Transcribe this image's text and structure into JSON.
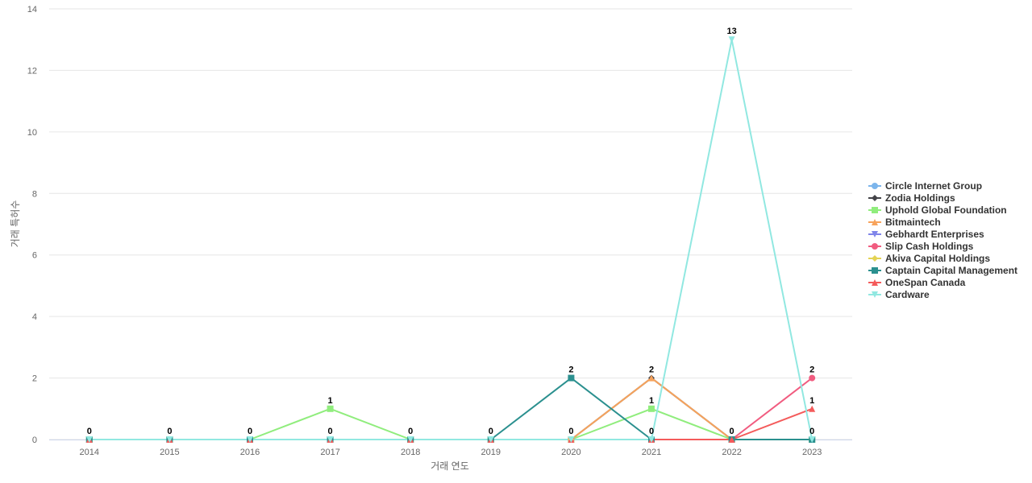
{
  "chart_data": {
    "type": "line",
    "xlabel": "거래 연도",
    "ylabel": "거래 특허수",
    "ylim": [
      0,
      14
    ],
    "yticks": [
      0,
      2,
      4,
      6,
      8,
      10,
      12,
      14
    ],
    "grid": true,
    "legend_position": "right",
    "categories": [
      "2014",
      "2015",
      "2016",
      "2017",
      "2018",
      "2019",
      "2020",
      "2021",
      "2022",
      "2023"
    ],
    "series": [
      {
        "name": "Circle Internet Group",
        "color": "#7cb5ec",
        "marker": "circle",
        "values": [
          0,
          0,
          0,
          0,
          0,
          0,
          0,
          0,
          0,
          0
        ]
      },
      {
        "name": "Zodia Holdings",
        "color": "#434348",
        "marker": "diamond",
        "values": [
          0,
          0,
          0,
          0,
          0,
          0,
          0,
          2,
          0,
          0
        ]
      },
      {
        "name": "Uphold Global Foundation",
        "color": "#90ed7d",
        "marker": "square",
        "values": [
          0,
          0,
          0,
          1,
          0,
          0,
          0,
          1,
          0,
          0
        ]
      },
      {
        "name": "Bitmaintech",
        "color": "#f7a35c",
        "marker": "triangle",
        "values": [
          0,
          0,
          0,
          0,
          0,
          0,
          0,
          2,
          0,
          0
        ]
      },
      {
        "name": "Gebhardt Enterprises",
        "color": "#8085e9",
        "marker": "triangle-down",
        "values": [
          0,
          0,
          0,
          0,
          0,
          0,
          0,
          0,
          0,
          0
        ]
      },
      {
        "name": "Slip Cash Holdings",
        "color": "#f15c80",
        "marker": "circle",
        "values": [
          0,
          0,
          0,
          0,
          0,
          0,
          0,
          0,
          0,
          2
        ]
      },
      {
        "name": "Akiva Capital Holdings",
        "color": "#e4d354",
        "marker": "diamond",
        "values": [
          0,
          0,
          0,
          0,
          0,
          0,
          0,
          0,
          0,
          0
        ]
      },
      {
        "name": "Captain Capital Management",
        "color": "#2b908f",
        "marker": "square",
        "values": [
          0,
          0,
          0,
          0,
          0,
          0,
          2,
          0,
          0,
          0
        ]
      },
      {
        "name": "OneSpan Canada",
        "color": "#f45b5b",
        "marker": "triangle",
        "values": [
          0,
          0,
          0,
          0,
          0,
          0,
          0,
          0,
          0,
          1
        ]
      },
      {
        "name": "Cardware",
        "color": "#91e8e1",
        "marker": "triangle-down",
        "values": [
          0,
          0,
          0,
          0,
          0,
          0,
          0,
          0,
          13,
          0
        ]
      }
    ],
    "data_labels": [
      {
        "x": "2014",
        "value": 0
      },
      {
        "x": "2015",
        "value": 0
      },
      {
        "x": "2016",
        "value": 0
      },
      {
        "x": "2017",
        "value": 0
      },
      {
        "x": "2017",
        "value": 1
      },
      {
        "x": "2018",
        "value": 0
      },
      {
        "x": "2019",
        "value": 0
      },
      {
        "x": "2020",
        "value": 0
      },
      {
        "x": "2020",
        "value": 2
      },
      {
        "x": "2021",
        "value": 0
      },
      {
        "x": "2021",
        "value": 1
      },
      {
        "x": "2021",
        "value": 2
      },
      {
        "x": "2022",
        "value": 0
      },
      {
        "x": "2022",
        "value": 13
      },
      {
        "x": "2023",
        "value": 0
      },
      {
        "x": "2023",
        "value": 1
      },
      {
        "x": "2023",
        "value": 2
      }
    ]
  }
}
